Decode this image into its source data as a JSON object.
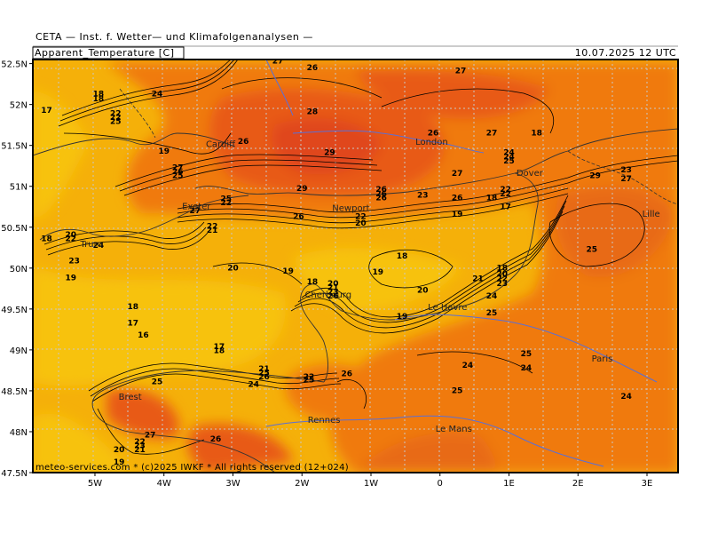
{
  "header": {
    "title": "CETA — Inst. f. Wetter— und Klimafolgenanalysen —",
    "variable": "Apparent_Temperature [C]",
    "valid_time": "10.07.2025 12 UTC"
  },
  "footer": {
    "credit": "meteo-services.com * (c)2025 IWKF * All rights reserved (12+024)"
  },
  "map": {
    "lon_range": [
      -5.9,
      3.45
    ],
    "lat_range": [
      47.5,
      52.55
    ],
    "lat_ticks": [
      "52.5N",
      "52N",
      "51.5N",
      "51N",
      "50.5N",
      "50N",
      "49.5N",
      "49N",
      "48.5N",
      "48N",
      "47.5N"
    ],
    "lon_ticks": [
      "5W",
      "4W",
      "3W",
      "2W",
      "1W",
      "0",
      "1E",
      "2E",
      "3E"
    ],
    "colors": {
      "t17_19": "#f7cf0a",
      "t20_22": "#f5b009",
      "t23_24": "#f29209",
      "t25_26": "#f07a10",
      "t27_28": "#e85a18",
      "t29": "#e0471b",
      "contour": "#000000",
      "coast_border": "#333333",
      "river": "#5a6fd6",
      "grid": "#b0b0b0"
    },
    "cities": [
      {
        "name": "London",
        "lon": -0.12,
        "lat": 51.51
      },
      {
        "name": "Dover",
        "lon": 1.3,
        "lat": 51.13
      },
      {
        "name": "Lille",
        "lon": 3.06,
        "lat": 50.63
      },
      {
        "name": "Cardiff",
        "lon": -3.18,
        "lat": 51.48
      },
      {
        "name": "Exeter",
        "lon": -3.53,
        "lat": 50.72
      },
      {
        "name": "Newport",
        "lon": -1.29,
        "lat": 50.7
      },
      {
        "name": "Truro",
        "lon": -5.05,
        "lat": 50.26
      },
      {
        "name": "Cherbourg",
        "lon": -1.62,
        "lat": 49.64
      },
      {
        "name": "Le Havre",
        "lon": 0.11,
        "lat": 49.49
      },
      {
        "name": "Paris",
        "lon": 2.35,
        "lat": 48.86
      },
      {
        "name": "Brest",
        "lon": -4.49,
        "lat": 48.39
      },
      {
        "name": "Rennes",
        "lon": -1.68,
        "lat": 48.11
      },
      {
        "name": "Le Mans",
        "lon": 0.2,
        "lat": 48.0
      }
    ],
    "contour_labels": [
      {
        "v": "27",
        "lon": -2.35,
        "lat": 52.5
      },
      {
        "v": "26",
        "lon": -1.85,
        "lat": 52.42
      },
      {
        "v": "27",
        "lon": 0.3,
        "lat": 52.38
      },
      {
        "v": "24",
        "lon": -4.1,
        "lat": 52.1
      },
      {
        "v": "18",
        "lon": -4.95,
        "lat": 52.1
      },
      {
        "v": "18",
        "lon": -4.95,
        "lat": 52.04
      },
      {
        "v": "17",
        "lon": -5.7,
        "lat": 51.9
      },
      {
        "v": "28",
        "lon": -1.85,
        "lat": 51.88
      },
      {
        "v": "22",
        "lon": -4.7,
        "lat": 51.86
      },
      {
        "v": "22",
        "lon": -4.7,
        "lat": 51.81
      },
      {
        "v": "25",
        "lon": -4.7,
        "lat": 51.76
      },
      {
        "v": "26",
        "lon": -0.1,
        "lat": 51.62
      },
      {
        "v": "27",
        "lon": 0.75,
        "lat": 51.62
      },
      {
        "v": "18",
        "lon": 1.4,
        "lat": 51.62
      },
      {
        "v": "26",
        "lon": -2.85,
        "lat": 51.52
      },
      {
        "v": "19",
        "lon": -4.0,
        "lat": 51.4
      },
      {
        "v": "29",
        "lon": -1.6,
        "lat": 51.38
      },
      {
        "v": "24",
        "lon": 1.0,
        "lat": 51.38
      },
      {
        "v": "24",
        "lon": 1.0,
        "lat": 51.33
      },
      {
        "v": "25",
        "lon": 1.0,
        "lat": 51.28
      },
      {
        "v": "27",
        "lon": -3.8,
        "lat": 51.2
      },
      {
        "v": "26",
        "lon": -3.8,
        "lat": 51.15
      },
      {
        "v": "25",
        "lon": -3.8,
        "lat": 51.1
      },
      {
        "v": "27",
        "lon": 0.25,
        "lat": 51.13
      },
      {
        "v": "29",
        "lon": 2.25,
        "lat": 51.1
      },
      {
        "v": "23",
        "lon": 2.7,
        "lat": 51.17
      },
      {
        "v": "27",
        "lon": 2.7,
        "lat": 51.06
      },
      {
        "v": "29",
        "lon": -2.0,
        "lat": 50.94
      },
      {
        "v": "26",
        "lon": -0.85,
        "lat": 50.93
      },
      {
        "v": "26",
        "lon": -0.85,
        "lat": 50.88
      },
      {
        "v": "26",
        "lon": -0.85,
        "lat": 50.83
      },
      {
        "v": "23",
        "lon": -0.25,
        "lat": 50.86
      },
      {
        "v": "26",
        "lon": 0.25,
        "lat": 50.83
      },
      {
        "v": "18",
        "lon": 0.75,
        "lat": 50.83
      },
      {
        "v": "22",
        "lon": 0.95,
        "lat": 50.93
      },
      {
        "v": "22",
        "lon": 0.95,
        "lat": 50.88
      },
      {
        "v": "17",
        "lon": 0.95,
        "lat": 50.72
      },
      {
        "v": "25",
        "lon": -3.1,
        "lat": 50.82
      },
      {
        "v": "22",
        "lon": -3.1,
        "lat": 50.77
      },
      {
        "v": "27",
        "lon": -3.55,
        "lat": 50.67
      },
      {
        "v": "26",
        "lon": -2.05,
        "lat": 50.6
      },
      {
        "v": "22",
        "lon": -1.15,
        "lat": 50.6
      },
      {
        "v": "20",
        "lon": -1.15,
        "lat": 50.52
      },
      {
        "v": "19",
        "lon": 0.25,
        "lat": 50.63
      },
      {
        "v": "22",
        "lon": -3.3,
        "lat": 50.48
      },
      {
        "v": "21",
        "lon": -3.3,
        "lat": 50.43
      },
      {
        "v": "20",
        "lon": -5.35,
        "lat": 50.38
      },
      {
        "v": "22",
        "lon": -5.35,
        "lat": 50.33
      },
      {
        "v": "18",
        "lon": -5.7,
        "lat": 50.33
      },
      {
        "v": "24",
        "lon": -4.95,
        "lat": 50.25
      },
      {
        "v": "23",
        "lon": -5.3,
        "lat": 50.06
      },
      {
        "v": "18",
        "lon": -0.55,
        "lat": 50.12
      },
      {
        "v": "25",
        "lon": 2.2,
        "lat": 50.2
      },
      {
        "v": "20",
        "lon": -3.0,
        "lat": 49.97
      },
      {
        "v": "19",
        "lon": -2.2,
        "lat": 49.93
      },
      {
        "v": "19",
        "lon": -0.9,
        "lat": 49.92
      },
      {
        "v": "18",
        "lon": 0.9,
        "lat": 49.97
      },
      {
        "v": "21",
        "lon": 0.55,
        "lat": 49.84
      },
      {
        "v": "20",
        "lon": 0.9,
        "lat": 49.9
      },
      {
        "v": "22",
        "lon": 0.9,
        "lat": 49.84
      },
      {
        "v": "23",
        "lon": 0.9,
        "lat": 49.78
      },
      {
        "v": "19",
        "lon": -5.35,
        "lat": 49.85
      },
      {
        "v": "18",
        "lon": -1.85,
        "lat": 49.8
      },
      {
        "v": "20",
        "lon": -1.55,
        "lat": 49.78
      },
      {
        "v": "21",
        "lon": -1.55,
        "lat": 49.73
      },
      {
        "v": "23",
        "lon": -1.55,
        "lat": 49.68
      },
      {
        "v": "26",
        "lon": -1.55,
        "lat": 49.63
      },
      {
        "v": "20",
        "lon": -0.25,
        "lat": 49.7
      },
      {
        "v": "24",
        "lon": 0.75,
        "lat": 49.63
      },
      {
        "v": "18",
        "lon": -4.45,
        "lat": 49.5
      },
      {
        "v": "25",
        "lon": 0.75,
        "lat": 49.42
      },
      {
        "v": "19",
        "lon": -0.55,
        "lat": 49.38
      },
      {
        "v": "17",
        "lon": -4.45,
        "lat": 49.3
      },
      {
        "v": "16",
        "lon": -4.3,
        "lat": 49.15
      },
      {
        "v": "17",
        "lon": -3.2,
        "lat": 49.01
      },
      {
        "v": "18",
        "lon": -3.2,
        "lat": 48.96
      },
      {
        "v": "25",
        "lon": 1.25,
        "lat": 48.92
      },
      {
        "v": "24",
        "lon": 0.4,
        "lat": 48.78
      },
      {
        "v": "24",
        "lon": 1.25,
        "lat": 48.75
      },
      {
        "v": "21",
        "lon": -2.55,
        "lat": 48.74
      },
      {
        "v": "25",
        "lon": -2.55,
        "lat": 48.69
      },
      {
        "v": "26",
        "lon": -2.55,
        "lat": 48.64
      },
      {
        "v": "22",
        "lon": -1.9,
        "lat": 48.64
      },
      {
        "v": "25",
        "lon": -1.9,
        "lat": 48.6
      },
      {
        "v": "26",
        "lon": -1.35,
        "lat": 48.68
      },
      {
        "v": "24",
        "lon": -2.7,
        "lat": 48.55
      },
      {
        "v": "25",
        "lon": -4.1,
        "lat": 48.58
      },
      {
        "v": "25",
        "lon": 0.25,
        "lat": 48.47
      },
      {
        "v": "24",
        "lon": 2.7,
        "lat": 48.4
      },
      {
        "v": "27",
        "lon": -4.2,
        "lat": 47.93
      },
      {
        "v": "26",
        "lon": -3.25,
        "lat": 47.88
      },
      {
        "v": "20",
        "lon": -4.65,
        "lat": 47.75
      },
      {
        "v": "22",
        "lon": -4.35,
        "lat": 47.85
      },
      {
        "v": "23",
        "lon": -4.35,
        "lat": 47.8
      },
      {
        "v": "21",
        "lon": -4.35,
        "lat": 47.75
      },
      {
        "v": "19",
        "lon": -4.65,
        "lat": 47.6
      }
    ]
  }
}
